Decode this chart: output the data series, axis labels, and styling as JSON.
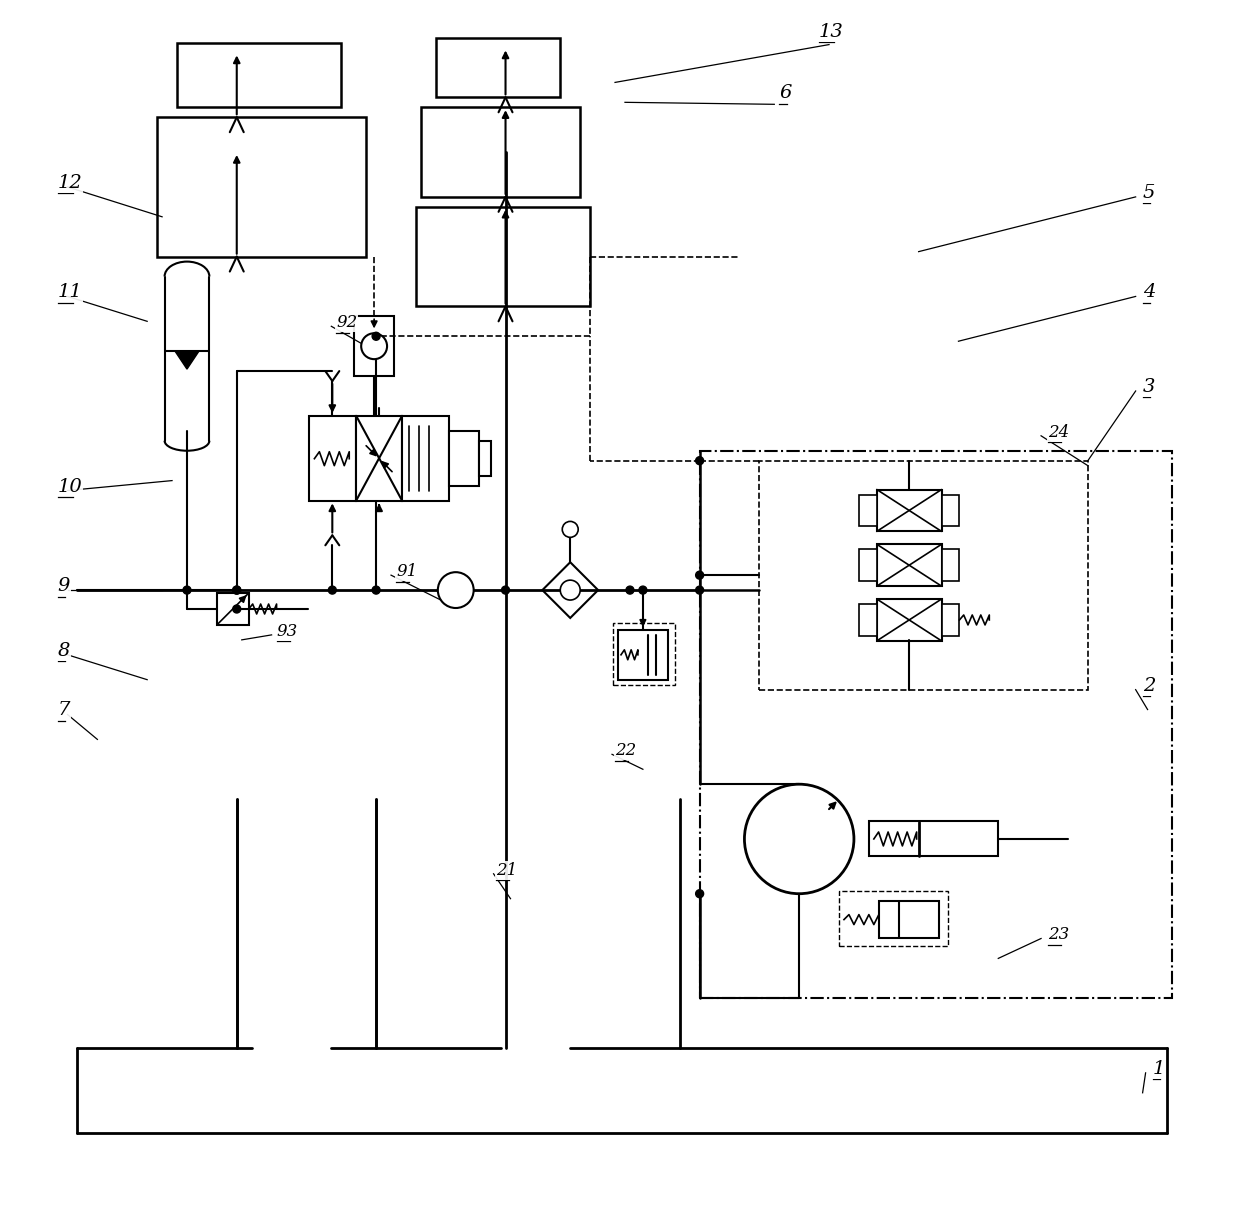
{
  "bg_color": "#ffffff",
  "lc": "#000000",
  "lw": 1.5
}
